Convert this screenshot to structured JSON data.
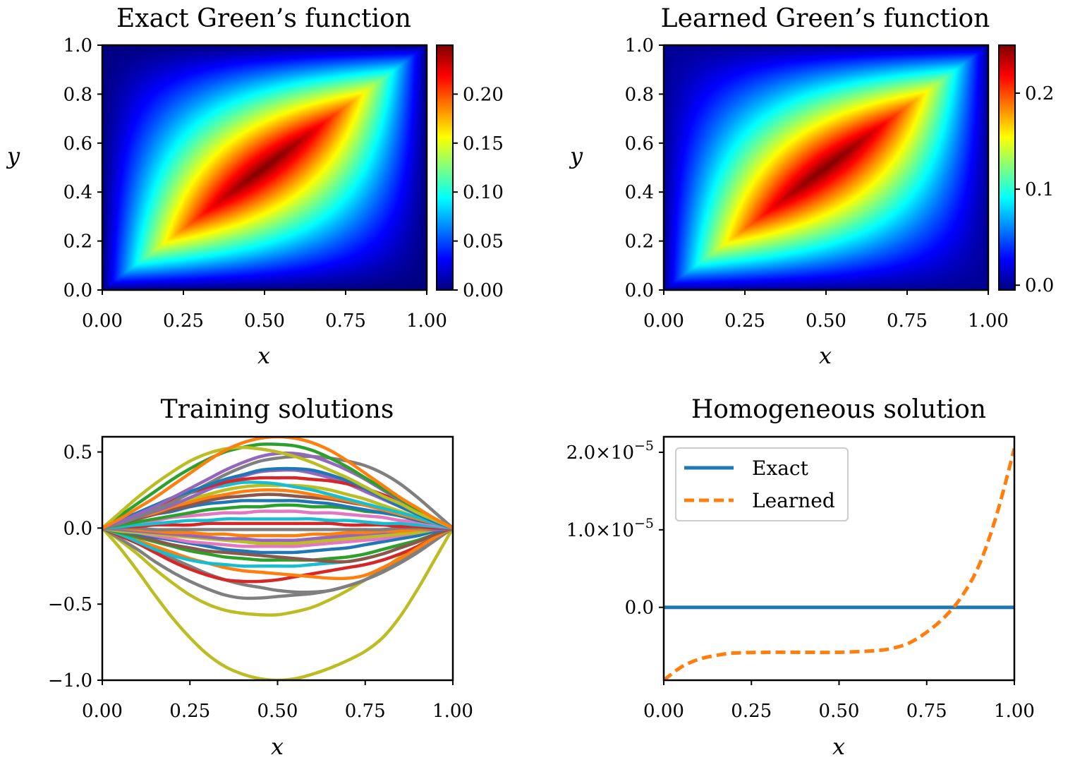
{
  "chart_data": [
    {
      "type": "heatmap",
      "title": "Exact Green’s function",
      "xlabel": "x",
      "ylabel": "y",
      "xlim": [
        0,
        1
      ],
      "ylim": [
        0,
        1
      ],
      "xticks": [
        "0.00",
        "0.25",
        "0.50",
        "0.75",
        "1.00"
      ],
      "yticks": [
        "0.0",
        "0.2",
        "0.4",
        "0.6",
        "0.8",
        "1.0"
      ],
      "function": "G(x,y) = x(1-y) if x<=y else y(1-x)",
      "colormap": "jet",
      "colorbar": {
        "vmin": 0,
        "vmax": 0.25,
        "ticks": [
          0,
          0.05,
          0.1,
          0.15,
          0.2
        ],
        "ticklabels": [
          "0.00",
          "0.05",
          "0.10",
          "0.15",
          "0.20"
        ]
      }
    },
    {
      "type": "heatmap",
      "title": "Learned Green’s function",
      "xlabel": "x",
      "ylabel": "y",
      "xlim": [
        0,
        1
      ],
      "ylim": [
        0,
        1
      ],
      "xticks": [
        "0.00",
        "0.25",
        "0.50",
        "0.75",
        "1.00"
      ],
      "yticks": [
        "0.0",
        "0.2",
        "0.4",
        "0.6",
        "0.8",
        "1.0"
      ],
      "function": "G(x,y) = x(1-y) if x<=y else y(1-x)",
      "colormap": "jet",
      "colorbar": {
        "vmin": -0.005,
        "vmax": 0.25,
        "ticks": [
          0.0,
          0.1,
          0.2
        ],
        "ticklabels": [
          "0.0",
          "0.1",
          "0.2"
        ]
      }
    },
    {
      "type": "line",
      "title": "Training solutions",
      "xlabel": "x",
      "ylabel": "",
      "xlim": [
        0,
        1
      ],
      "ylim": [
        -1.0,
        0.6
      ],
      "xticks": [
        "0.00",
        "0.25",
        "0.50",
        "0.75",
        "1.00"
      ],
      "yticks": [
        {
          "value": -1.0,
          "label": "−1.0"
        },
        {
          "value": -0.5,
          "label": "−0.5"
        },
        {
          "value": 0.0,
          "label": "0.0"
        },
        {
          "value": 0.5,
          "label": "0.5"
        }
      ],
      "x": [
        0,
        0.05,
        0.1,
        0.15,
        0.2,
        0.25,
        0.3,
        0.35,
        0.4,
        0.45,
        0.5,
        0.55,
        0.6,
        0.65,
        0.7,
        0.75,
        0.8,
        0.85,
        0.9,
        0.95,
        1.0
      ],
      "series": [
        {
          "color": "#bcbd22",
          "values": [
            0,
            -0.13,
            -0.28,
            -0.44,
            -0.59,
            -0.72,
            -0.83,
            -0.91,
            -0.96,
            -0.99,
            -1.0,
            -0.99,
            -0.96,
            -0.92,
            -0.87,
            -0.81,
            -0.72,
            -0.58,
            -0.4,
            -0.2,
            0
          ]
        },
        {
          "color": "#bcbd22",
          "values": [
            0,
            -0.08,
            -0.17,
            -0.27,
            -0.36,
            -0.44,
            -0.5,
            -0.54,
            -0.56,
            -0.57,
            -0.57,
            -0.55,
            -0.52,
            -0.47,
            -0.41,
            -0.34,
            -0.27,
            -0.19,
            -0.12,
            -0.05,
            0
          ]
        },
        {
          "color": "#7f7f7f",
          "values": [
            0,
            -0.07,
            -0.14,
            -0.22,
            -0.29,
            -0.35,
            -0.4,
            -0.44,
            -0.46,
            -0.46,
            -0.45,
            -0.44,
            -0.43,
            -0.41,
            -0.38,
            -0.34,
            -0.29,
            -0.23,
            -0.16,
            -0.08,
            0
          ]
        },
        {
          "color": "#7f7f7f",
          "values": [
            0,
            -0.05,
            -0.1,
            -0.15,
            -0.2,
            -0.25,
            -0.3,
            -0.34,
            -0.37,
            -0.39,
            -0.41,
            -0.42,
            -0.42,
            -0.41,
            -0.38,
            -0.34,
            -0.28,
            -0.21,
            -0.14,
            -0.07,
            0
          ]
        },
        {
          "color": "#d62728",
          "values": [
            0,
            -0.05,
            -0.1,
            -0.16,
            -0.22,
            -0.27,
            -0.31,
            -0.34,
            -0.35,
            -0.35,
            -0.34,
            -0.32,
            -0.3,
            -0.28,
            -0.26,
            -0.24,
            -0.21,
            -0.17,
            -0.12,
            -0.06,
            0
          ]
        },
        {
          "color": "#ff7f0e",
          "values": [
            0,
            -0.04,
            -0.08,
            -0.12,
            -0.16,
            -0.2,
            -0.23,
            -0.26,
            -0.28,
            -0.29,
            -0.3,
            -0.31,
            -0.32,
            -0.33,
            -0.33,
            -0.31,
            -0.26,
            -0.2,
            -0.13,
            -0.06,
            0
          ]
        },
        {
          "color": "#17becf",
          "values": [
            0,
            -0.04,
            -0.09,
            -0.14,
            -0.18,
            -0.21,
            -0.23,
            -0.24,
            -0.25,
            -0.25,
            -0.25,
            -0.25,
            -0.24,
            -0.23,
            -0.22,
            -0.2,
            -0.17,
            -0.13,
            -0.09,
            -0.04,
            0
          ]
        },
        {
          "color": "#2ca02c",
          "values": [
            0,
            -0.03,
            -0.06,
            -0.09,
            -0.12,
            -0.15,
            -0.17,
            -0.19,
            -0.2,
            -0.21,
            -0.21,
            -0.21,
            -0.21,
            -0.2,
            -0.19,
            -0.17,
            -0.14,
            -0.11,
            -0.08,
            -0.04,
            0
          ]
        },
        {
          "color": "#8c564b",
          "values": [
            0,
            -0.02,
            -0.05,
            -0.08,
            -0.11,
            -0.13,
            -0.15,
            -0.16,
            -0.17,
            -0.18,
            -0.19,
            -0.2,
            -0.21,
            -0.22,
            -0.22,
            -0.2,
            -0.17,
            -0.13,
            -0.09,
            -0.04,
            0
          ]
        },
        {
          "color": "#1f77b4",
          "values": [
            0,
            -0.02,
            -0.04,
            -0.06,
            -0.08,
            -0.1,
            -0.12,
            -0.14,
            -0.15,
            -0.16,
            -0.16,
            -0.16,
            -0.15,
            -0.14,
            -0.13,
            -0.11,
            -0.09,
            -0.07,
            -0.05,
            -0.02,
            0
          ]
        },
        {
          "color": "#e377c2",
          "values": [
            0,
            -0.01,
            -0.03,
            -0.05,
            -0.07,
            -0.09,
            -0.1,
            -0.11,
            -0.12,
            -0.12,
            -0.12,
            -0.12,
            -0.11,
            -0.1,
            -0.09,
            -0.08,
            -0.07,
            -0.05,
            -0.03,
            -0.01,
            0
          ]
        },
        {
          "color": "#bcbd22",
          "values": [
            0,
            -0.02,
            -0.03,
            -0.04,
            -0.05,
            -0.06,
            -0.07,
            -0.08,
            -0.09,
            -0.1,
            -0.1,
            -0.1,
            -0.09,
            -0.08,
            -0.07,
            -0.06,
            -0.05,
            -0.04,
            -0.03,
            -0.01,
            0
          ]
        },
        {
          "color": "#9467bd",
          "values": [
            0,
            -0.01,
            -0.02,
            -0.03,
            -0.04,
            -0.05,
            -0.06,
            -0.07,
            -0.07,
            -0.08,
            -0.08,
            -0.08,
            -0.07,
            -0.06,
            -0.05,
            -0.04,
            -0.03,
            -0.02,
            -0.01,
            -0.01,
            0
          ]
        },
        {
          "color": "#ff7f0e",
          "values": [
            0,
            0,
            -0.01,
            -0.02,
            -0.03,
            -0.03,
            -0.04,
            -0.04,
            -0.05,
            -0.05,
            -0.05,
            -0.05,
            -0.04,
            -0.04,
            -0.03,
            -0.03,
            -0.02,
            -0.02,
            -0.01,
            0,
            0
          ]
        },
        {
          "color": "#7f7f7f",
          "values": [
            0,
            0,
            0,
            -0.01,
            -0.01,
            -0.01,
            -0.01,
            -0.01,
            -0.01,
            -0.01,
            -0.01,
            -0.01,
            -0.01,
            -0.01,
            -0.01,
            -0.01,
            -0.01,
            0,
            0,
            0,
            0
          ]
        },
        {
          "color": "#d62728",
          "values": [
            0,
            0.01,
            0.01,
            0.02,
            0.02,
            0.02,
            0.03,
            0.03,
            0.03,
            0.03,
            0.03,
            0.03,
            0.03,
            0.03,
            0.02,
            0.02,
            0.02,
            0.01,
            0.01,
            0,
            0
          ]
        },
        {
          "color": "#17becf",
          "values": [
            0,
            0.01,
            0.02,
            0.03,
            0.04,
            0.05,
            0.05,
            0.06,
            0.06,
            0.06,
            0.06,
            0.06,
            0.06,
            0.05,
            0.05,
            0.04,
            0.03,
            0.03,
            0.02,
            0.01,
            0
          ]
        },
        {
          "color": "#e377c2",
          "values": [
            0,
            0.02,
            0.04,
            0.05,
            0.07,
            0.08,
            0.09,
            0.1,
            0.1,
            0.11,
            0.11,
            0.11,
            0.1,
            0.1,
            0.09,
            0.08,
            0.07,
            0.05,
            0.04,
            0.02,
            0
          ]
        },
        {
          "color": "#2ca02c",
          "values": [
            0,
            0.02,
            0.04,
            0.06,
            0.08,
            0.1,
            0.12,
            0.13,
            0.14,
            0.14,
            0.15,
            0.15,
            0.14,
            0.14,
            0.13,
            0.11,
            0.1,
            0.08,
            0.05,
            0.03,
            0
          ]
        },
        {
          "color": "#1f77b4",
          "values": [
            0,
            0.03,
            0.06,
            0.09,
            0.11,
            0.14,
            0.16,
            0.17,
            0.18,
            0.18,
            0.18,
            0.18,
            0.17,
            0.16,
            0.14,
            0.12,
            0.1,
            0.08,
            0.05,
            0.03,
            0
          ]
        },
        {
          "color": "#8c564b",
          "values": [
            0,
            0.03,
            0.06,
            0.09,
            0.12,
            0.15,
            0.18,
            0.2,
            0.21,
            0.22,
            0.22,
            0.21,
            0.2,
            0.19,
            0.17,
            0.15,
            0.12,
            0.09,
            0.06,
            0.03,
            0
          ]
        },
        {
          "color": "#ff7f0e",
          "values": [
            0,
            0.03,
            0.07,
            0.1,
            0.14,
            0.17,
            0.2,
            0.22,
            0.24,
            0.25,
            0.25,
            0.24,
            0.22,
            0.2,
            0.18,
            0.15,
            0.12,
            0.09,
            0.06,
            0.03,
            0
          ]
        },
        {
          "color": "#bcbd22",
          "values": [
            0,
            0.04,
            0.08,
            0.12,
            0.16,
            0.19,
            0.22,
            0.25,
            0.27,
            0.28,
            0.28,
            0.28,
            0.27,
            0.25,
            0.22,
            0.19,
            0.15,
            0.11,
            0.07,
            0.04,
            0
          ]
        },
        {
          "color": "#17becf",
          "values": [
            0,
            0.05,
            0.1,
            0.15,
            0.19,
            0.23,
            0.26,
            0.28,
            0.3,
            0.3,
            0.29,
            0.27,
            0.25,
            0.22,
            0.19,
            0.16,
            0.13,
            0.1,
            0.07,
            0.03,
            0
          ]
        },
        {
          "color": "#9467bd",
          "values": [
            0,
            0.03,
            0.07,
            0.11,
            0.15,
            0.2,
            0.25,
            0.3,
            0.34,
            0.37,
            0.38,
            0.38,
            0.36,
            0.33,
            0.29,
            0.24,
            0.19,
            0.14,
            0.09,
            0.04,
            0
          ]
        },
        {
          "color": "#d62728",
          "values": [
            0,
            0.04,
            0.09,
            0.14,
            0.19,
            0.23,
            0.27,
            0.3,
            0.32,
            0.33,
            0.33,
            0.33,
            0.32,
            0.31,
            0.29,
            0.26,
            0.22,
            0.17,
            0.11,
            0.05,
            0
          ]
        },
        {
          "color": "#7f7f7f",
          "values": [
            0,
            0.03,
            0.07,
            0.12,
            0.17,
            0.23,
            0.29,
            0.35,
            0.4,
            0.44,
            0.46,
            0.47,
            0.47,
            0.46,
            0.44,
            0.41,
            0.36,
            0.29,
            0.2,
            0.1,
            0
          ]
        },
        {
          "color": "#1f77b4",
          "values": [
            0,
            0.05,
            0.1,
            0.15,
            0.2,
            0.24,
            0.28,
            0.32,
            0.35,
            0.38,
            0.39,
            0.39,
            0.38,
            0.35,
            0.31,
            0.26,
            0.2,
            0.14,
            0.09,
            0.04,
            0
          ]
        },
        {
          "color": "#9467bd",
          "values": [
            0,
            0.04,
            0.09,
            0.14,
            0.2,
            0.26,
            0.32,
            0.38,
            0.43,
            0.47,
            0.49,
            0.49,
            0.47,
            0.43,
            0.38,
            0.32,
            0.25,
            0.18,
            0.11,
            0.05,
            0
          ]
        },
        {
          "color": "#2ca02c",
          "values": [
            0,
            0.08,
            0.16,
            0.24,
            0.32,
            0.39,
            0.45,
            0.5,
            0.53,
            0.55,
            0.55,
            0.54,
            0.51,
            0.46,
            0.4,
            0.33,
            0.26,
            0.19,
            0.12,
            0.06,
            0
          ]
        },
        {
          "color": "#bcbd22",
          "values": [
            0,
            0.1,
            0.2,
            0.29,
            0.37,
            0.44,
            0.49,
            0.52,
            0.53,
            0.52,
            0.5,
            0.47,
            0.43,
            0.38,
            0.33,
            0.27,
            0.21,
            0.16,
            0.1,
            0.05,
            0
          ]
        },
        {
          "color": "#ff7f0e",
          "values": [
            0,
            0.06,
            0.13,
            0.2,
            0.28,
            0.36,
            0.44,
            0.51,
            0.56,
            0.59,
            0.6,
            0.59,
            0.56,
            0.51,
            0.44,
            0.36,
            0.28,
            0.2,
            0.13,
            0.06,
            0
          ]
        }
      ]
    },
    {
      "type": "line",
      "title": "Homogeneous solution",
      "xlabel": "x",
      "ylabel": "",
      "xlim": [
        0,
        1
      ],
      "ylim": [
        -9.4e-06,
        2.2e-05
      ],
      "xticks": [
        "0.00",
        "0.25",
        "0.50",
        "0.75",
        "1.00"
      ],
      "yticks": [
        {
          "value": 0,
          "label": "0.0"
        },
        {
          "value": 1e-05,
          "label": "1.0×10",
          "exp": "−5"
        },
        {
          "value": 2e-05,
          "label": "2.0×10",
          "exp": "−5"
        }
      ],
      "legend": {
        "location": "upper left"
      },
      "x": [
        0,
        0.05,
        0.1,
        0.15,
        0.2,
        0.3,
        0.4,
        0.5,
        0.6,
        0.65,
        0.7,
        0.75,
        0.8,
        0.85,
        0.9,
        0.95,
        1.0
      ],
      "series": [
        {
          "name": "Exact",
          "color": "#1f77b4",
          "dash": "solid",
          "values": [
            0,
            0,
            0,
            0,
            0,
            0,
            0,
            0,
            0,
            0,
            0,
            0,
            0,
            0,
            0,
            0,
            0
          ]
        },
        {
          "name": "Learned",
          "color": "#ff7f0e",
          "dash": "dashed",
          "values": [
            -9.4e-06,
            -7.7e-06,
            -6.7e-06,
            -6.2e-06,
            -5.9e-06,
            -5.8e-06,
            -5.8e-06,
            -5.8e-06,
            -5.6e-06,
            -5.3e-06,
            -4.6e-06,
            -3.2e-06,
            -1.3e-06,
            1.4e-06,
            5.5e-06,
            1.2e-05,
            2.05e-05
          ]
        }
      ]
    }
  ]
}
